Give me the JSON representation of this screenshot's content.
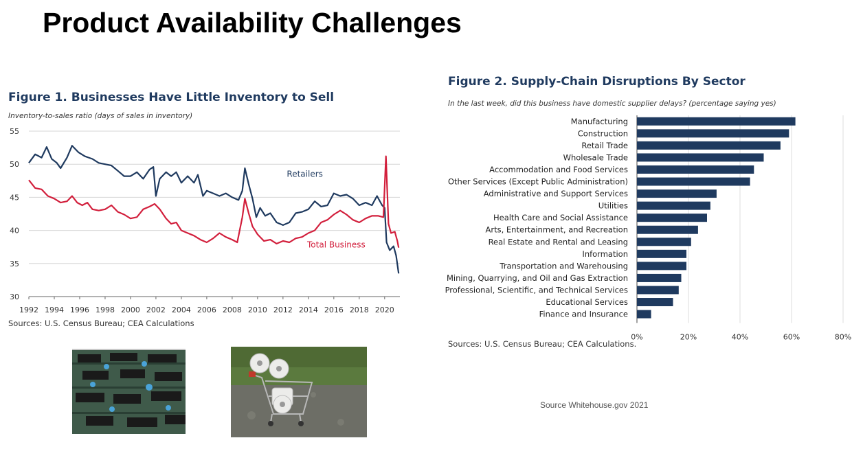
{
  "slide": {
    "title": "Product Availability Challenges",
    "credit": "Source Whitehouse.gov 2021"
  },
  "figure1": {
    "title": "Figure 1. Businesses Have Little Inventory to Sell",
    "subtitle": "Inventory-to-sales ratio (days of sales in inventory)",
    "source": "Sources: U.S. Census Bureau; CEA Calculations"
  },
  "figure2": {
    "title": "Figure 2. Supply-Chain Disruptions By Sector",
    "subtitle": "In the last week, did this business have domestic supplier delays? (percentage saying yes)",
    "source": "Sources: U.S. Census Bureau; CEA Calculations."
  },
  "images": {
    "left_icon": "circuit-board-photo",
    "right_icon": "shopping-cart-toilet-paper-photo"
  },
  "chart_data": [
    {
      "type": "line",
      "title": "Figure 1. Businesses Have Little Inventory to Sell",
      "ylabel": "Inventory-to-sales ratio (days of sales in inventory)",
      "xlabel": "",
      "ylim": [
        30,
        55
      ],
      "xlim": [
        1992,
        2021.2
      ],
      "xticks": [
        1992,
        1994,
        1996,
        1998,
        2000,
        2002,
        2004,
        2006,
        2008,
        2010,
        2012,
        2014,
        2016,
        2018,
        2020
      ],
      "yticks": [
        30,
        35,
        40,
        45,
        50,
        55
      ],
      "grid": "horizontal",
      "series": [
        {
          "name": "Retailers",
          "color": "#1f3a5f",
          "points": [
            [
              1992,
              50.2
            ],
            [
              1992.5,
              51.5
            ],
            [
              1993,
              51.0
            ],
            [
              1993.4,
              52.6
            ],
            [
              1993.8,
              50.8
            ],
            [
              1994.2,
              50.2
            ],
            [
              1994.5,
              49.4
            ],
            [
              1995,
              51.0
            ],
            [
              1995.4,
              52.8
            ],
            [
              1995.9,
              51.8
            ],
            [
              1996.4,
              51.2
            ],
            [
              1997,
              50.8
            ],
            [
              1997.5,
              50.2
            ],
            [
              1998,
              50.0
            ],
            [
              1998.5,
              49.8
            ],
            [
              1999,
              49.0
            ],
            [
              1999.5,
              48.2
            ],
            [
              2000,
              48.2
            ],
            [
              2000.5,
              48.8
            ],
            [
              2001,
              47.8
            ],
            [
              2001.5,
              49.2
            ],
            [
              2001.8,
              49.6
            ],
            [
              2002,
              45.2
            ],
            [
              2002.3,
              47.8
            ],
            [
              2002.8,
              48.8
            ],
            [
              2003.2,
              48.2
            ],
            [
              2003.6,
              48.8
            ],
            [
              2004,
              47.2
            ],
            [
              2004.5,
              48.2
            ],
            [
              2005,
              47.2
            ],
            [
              2005.3,
              48.4
            ],
            [
              2005.7,
              45.2
            ],
            [
              2006,
              46.0
            ],
            [
              2006.5,
              45.6
            ],
            [
              2007,
              45.2
            ],
            [
              2007.5,
              45.6
            ],
            [
              2008,
              45.0
            ],
            [
              2008.5,
              44.6
            ],
            [
              2008.8,
              46.0
            ],
            [
              2009,
              49.4
            ],
            [
              2009.3,
              47.0
            ],
            [
              2009.6,
              44.8
            ],
            [
              2009.9,
              42.0
            ],
            [
              2010.2,
              43.4
            ],
            [
              2010.6,
              42.2
            ],
            [
              2011,
              42.6
            ],
            [
              2011.5,
              41.2
            ],
            [
              2012,
              40.8
            ],
            [
              2012.5,
              41.2
            ],
            [
              2013,
              42.6
            ],
            [
              2013.5,
              42.8
            ],
            [
              2014,
              43.2
            ],
            [
              2014.5,
              44.4
            ],
            [
              2015,
              43.6
            ],
            [
              2015.5,
              43.8
            ],
            [
              2016,
              45.6
            ],
            [
              2016.5,
              45.2
            ],
            [
              2017,
              45.4
            ],
            [
              2017.5,
              44.8
            ],
            [
              2018,
              43.8
            ],
            [
              2018.5,
              44.2
            ],
            [
              2019,
              43.8
            ],
            [
              2019.4,
              45.2
            ],
            [
              2019.8,
              43.8
            ],
            [
              2020,
              43.4
            ],
            [
              2020.15,
              38.2
            ],
            [
              2020.4,
              37.0
            ],
            [
              2020.7,
              37.6
            ],
            [
              2020.9,
              36.2
            ],
            [
              2021.1,
              33.5
            ]
          ]
        },
        {
          "name": "Total Business",
          "color": "#d21f3c",
          "points": [
            [
              1992,
              47.6
            ],
            [
              1992.5,
              46.4
            ],
            [
              1993,
              46.2
            ],
            [
              1993.5,
              45.2
            ],
            [
              1994,
              44.8
            ],
            [
              1994.5,
              44.2
            ],
            [
              1995,
              44.4
            ],
            [
              1995.4,
              45.2
            ],
            [
              1995.8,
              44.2
            ],
            [
              1996.2,
              43.8
            ],
            [
              1996.6,
              44.2
            ],
            [
              1997,
              43.2
            ],
            [
              1997.5,
              43.0
            ],
            [
              1998,
              43.2
            ],
            [
              1998.5,
              43.8
            ],
            [
              1999,
              42.8
            ],
            [
              1999.5,
              42.4
            ],
            [
              2000,
              41.8
            ],
            [
              2000.5,
              42.0
            ],
            [
              2001,
              43.2
            ],
            [
              2001.5,
              43.6
            ],
            [
              2001.9,
              44.0
            ],
            [
              2002.3,
              43.2
            ],
            [
              2002.8,
              41.8
            ],
            [
              2003.2,
              41.0
            ],
            [
              2003.6,
              41.2
            ],
            [
              2004,
              40.0
            ],
            [
              2004.5,
              39.6
            ],
            [
              2005,
              39.2
            ],
            [
              2005.5,
              38.6
            ],
            [
              2006,
              38.2
            ],
            [
              2006.5,
              38.8
            ],
            [
              2007,
              39.6
            ],
            [
              2007.5,
              39.0
            ],
            [
              2008,
              38.6
            ],
            [
              2008.4,
              38.2
            ],
            [
              2008.8,
              42.0
            ],
            [
              2009,
              44.8
            ],
            [
              2009.3,
              42.6
            ],
            [
              2009.6,
              40.6
            ],
            [
              2010,
              39.4
            ],
            [
              2010.5,
              38.4
            ],
            [
              2011,
              38.6
            ],
            [
              2011.5,
              38.0
            ],
            [
              2012,
              38.4
            ],
            [
              2012.5,
              38.2
            ],
            [
              2013,
              38.8
            ],
            [
              2013.5,
              39.0
            ],
            [
              2014,
              39.6
            ],
            [
              2014.5,
              40.0
            ],
            [
              2015,
              41.2
            ],
            [
              2015.5,
              41.6
            ],
            [
              2016,
              42.4
            ],
            [
              2016.5,
              43.0
            ],
            [
              2017,
              42.4
            ],
            [
              2017.5,
              41.6
            ],
            [
              2018,
              41.2
            ],
            [
              2018.5,
              41.8
            ],
            [
              2019,
              42.2
            ],
            [
              2019.5,
              42.2
            ],
            [
              2019.9,
              42.0
            ],
            [
              2020.1,
              51.2
            ],
            [
              2020.3,
              41.0
            ],
            [
              2020.5,
              39.6
            ],
            [
              2020.8,
              39.8
            ],
            [
              2021.0,
              38.4
            ],
            [
              2021.1,
              37.4
            ]
          ]
        }
      ],
      "annotations": [
        "Retailers",
        "Total Business"
      ]
    },
    {
      "type": "bar",
      "orientation": "horizontal",
      "title": "Figure 2. Supply-Chain Disruptions By Sector",
      "ylabel": "",
      "xlabel": "",
      "xlim": [
        0,
        80
      ],
      "xticks": [
        0,
        20,
        40,
        60,
        80
      ],
      "xtick_labels": [
        "0%",
        "20%",
        "40%",
        "60%",
        "80%"
      ],
      "grid": "vertical",
      "color": "#1f3a5f",
      "categories": [
        "Manufacturing",
        "Construction",
        "Retail Trade",
        "Wholesale Trade",
        "Accommodation and Food Services",
        "Other Services (Except Public Administration)",
        "Administrative and Support Services",
        "Utilities",
        "Health Care and Social Assistance",
        "Arts, Entertainment, and Recreation",
        "Real Estate and Rental and Leasing",
        "Information",
        "Transportation and Warehousing",
        "Mining, Quarrying, and Oil and Gas Extraction",
        "Professional, Scientific, and Technical Services",
        "Educational Services",
        "Finance and Insurance"
      ],
      "values": [
        61.5,
        59.0,
        55.7,
        49.2,
        45.4,
        43.9,
        30.9,
        28.5,
        27.2,
        23.7,
        21.0,
        19.2,
        19.2,
        17.2,
        16.2,
        14.0,
        5.5
      ]
    }
  ]
}
